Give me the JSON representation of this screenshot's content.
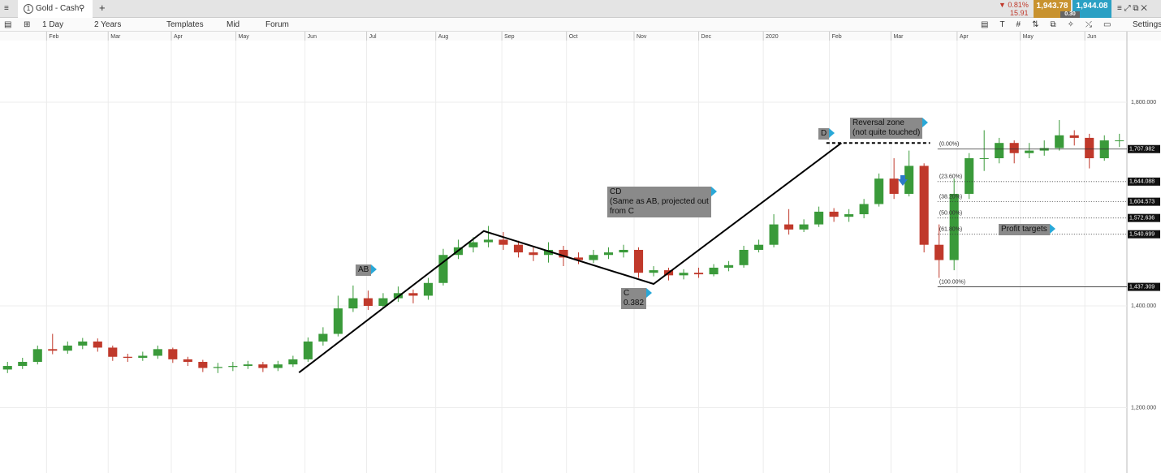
{
  "header": {
    "tab_number": "1",
    "tab_title": "Gold - Cash",
    "change_pct": "▼ 0.81%",
    "change_abs": "15.91",
    "sell": "1,943.78",
    "spread": "0.30",
    "buy": "1,944.08"
  },
  "toolbar": {
    "interval": "1 Day",
    "range": "2 Years",
    "templates": "Templates",
    "price_type": "Mid",
    "forum": "Forum",
    "settings": "Settings"
  },
  "chart_data": {
    "type": "candlestick",
    "up_color": "#3a9a3a",
    "down_color": "#c0392b",
    "xlim": [
      0,
      75
    ],
    "ylim": [
      1076.5,
      1921.1
    ],
    "xticks": [
      {
        "value": 3.1,
        "label": "Feb"
      },
      {
        "value": 7.2,
        "label": "Mar"
      },
      {
        "value": 11.4,
        "label": "Apr"
      },
      {
        "value": 15.7,
        "label": "May"
      },
      {
        "value": 20.3,
        "label": "Jun"
      },
      {
        "value": 24.4,
        "label": "Jul"
      },
      {
        "value": 29.0,
        "label": "Aug"
      },
      {
        "value": 33.4,
        "label": "Sep"
      },
      {
        "value": 37.7,
        "label": "Oct"
      },
      {
        "value": 42.2,
        "label": "Nov"
      },
      {
        "value": 46.5,
        "label": "Dec"
      },
      {
        "value": 50.8,
        "label": "2020"
      },
      {
        "value": 55.2,
        "label": "Feb"
      },
      {
        "value": 59.3,
        "label": "Mar"
      },
      {
        "value": 63.7,
        "label": "Apr"
      },
      {
        "value": 67.9,
        "label": "May"
      },
      {
        "value": 72.2,
        "label": "Jun"
      }
    ],
    "yticks": [
      {
        "value": 1800,
        "label": "1,800.000"
      },
      {
        "value": 1400,
        "label": "1,400.000"
      },
      {
        "value": 1200,
        "label": "1,200.000"
      }
    ],
    "grid": true,
    "open": [
      1275,
      1282,
      1290,
      1315,
      1312,
      1322,
      1330,
      1318,
      1300,
      1298,
      1302,
      1315,
      1295,
      1290,
      1278,
      1280,
      1282,
      1285,
      1278,
      1285,
      1295,
      1330,
      1345,
      1395,
      1415,
      1400,
      1415,
      1425,
      1420,
      1445,
      1500,
      1515,
      1525,
      1530,
      1520,
      1505,
      1500,
      1510,
      1495,
      1490,
      1500,
      1505,
      1510,
      1465,
      1470,
      1460,
      1465,
      1462,
      1475,
      1480,
      1510,
      1520,
      1560,
      1550,
      1560,
      1585,
      1575,
      1580,
      1600,
      1650,
      1620,
      1675,
      1520,
      1490,
      1620,
      1690,
      1690,
      1720,
      1700,
      1705,
      1710,
      1735,
      1730,
      1690,
      1725
    ],
    "high": [
      1290,
      1298,
      1322,
      1345,
      1330,
      1337,
      1336,
      1322,
      1306,
      1310,
      1322,
      1318,
      1300,
      1294,
      1288,
      1290,
      1292,
      1290,
      1292,
      1302,
      1338,
      1358,
      1420,
      1440,
      1430,
      1425,
      1438,
      1432,
      1455,
      1512,
      1530,
      1535,
      1557,
      1545,
      1528,
      1515,
      1525,
      1518,
      1505,
      1510,
      1515,
      1520,
      1515,
      1478,
      1475,
      1472,
      1475,
      1482,
      1488,
      1518,
      1530,
      1580,
      1590,
      1570,
      1595,
      1592,
      1590,
      1610,
      1660,
      1690,
      1705,
      1680,
      1560,
      1650,
      1700,
      1745,
      1730,
      1725,
      1720,
      1725,
      1765,
      1745,
      1738,
      1735,
      1738
    ],
    "low": [
      1268,
      1276,
      1285,
      1305,
      1306,
      1315,
      1310,
      1292,
      1290,
      1292,
      1296,
      1288,
      1282,
      1270,
      1268,
      1272,
      1276,
      1270,
      1272,
      1280,
      1290,
      1322,
      1340,
      1388,
      1392,
      1395,
      1408,
      1405,
      1412,
      1440,
      1492,
      1505,
      1515,
      1510,
      1495,
      1488,
      1485,
      1478,
      1482,
      1484,
      1492,
      1495,
      1455,
      1458,
      1450,
      1452,
      1455,
      1458,
      1468,
      1475,
      1505,
      1515,
      1540,
      1545,
      1555,
      1565,
      1565,
      1572,
      1595,
      1610,
      1615,
      1505,
      1455,
      1470,
      1610,
      1665,
      1680,
      1680,
      1690,
      1695,
      1705,
      1715,
      1670,
      1685,
      1712
    ],
    "close": [
      1282,
      1290,
      1315,
      1312,
      1322,
      1330,
      1318,
      1300,
      1298,
      1302,
      1315,
      1295,
      1290,
      1278,
      1280,
      1282,
      1285,
      1278,
      1285,
      1295,
      1330,
      1345,
      1395,
      1415,
      1400,
      1415,
      1425,
      1420,
      1445,
      1500,
      1515,
      1525,
      1530,
      1520,
      1505,
      1500,
      1510,
      1495,
      1490,
      1500,
      1505,
      1510,
      1465,
      1470,
      1460,
      1465,
      1462,
      1475,
      1480,
      1510,
      1520,
      1560,
      1550,
      1560,
      1585,
      1575,
      1580,
      1600,
      1650,
      1620,
      1675,
      1520,
      1490,
      1620,
      1690,
      1690,
      1720,
      1700,
      1705,
      1710,
      1735,
      1730,
      1690,
      1725,
      1725
    ],
    "pattern": {
      "x": [
        19.9,
        32.2,
        43.5,
        56.0
      ],
      "y": [
        1269,
        1547,
        1443,
        1720
      ]
    },
    "reversal_line": {
      "x": [
        55.0,
        61.9
      ],
      "y": 1720
    },
    "fib_start": 62.4,
    "fib_levels": [
      {
        "label": "(0.00%)",
        "value": 1707.982,
        "price_label": "1,707.982"
      },
      {
        "label": "(23.60%)",
        "value": 1644.088,
        "price_label": "1,644.088"
      },
      {
        "label": "(38.20%)",
        "value": 1604.573,
        "price_label": "1,604.573"
      },
      {
        "label": "(50.00%)",
        "value": 1572.636,
        "price_label": "1,572.636"
      },
      {
        "label": "(61.80%)",
        "value": 1540.699,
        "price_label": "1,540.699"
      },
      {
        "label": "(100.00%)",
        "value": 1437.309,
        "price_label": "1,437.309"
      }
    ],
    "annotations": [
      {
        "lines": [
          "AB"
        ]
      },
      {
        "lines": [
          "CD",
          "(Same as AB, projected out",
          "from C"
        ]
      },
      {
        "lines": [
          "C",
          "0.382"
        ]
      },
      {
        "lines": [
          "D"
        ]
      },
      {
        "lines": [
          "Reversal zone",
          "(not quite touched)"
        ]
      },
      {
        "lines": [
          "Profit targets"
        ]
      }
    ]
  }
}
